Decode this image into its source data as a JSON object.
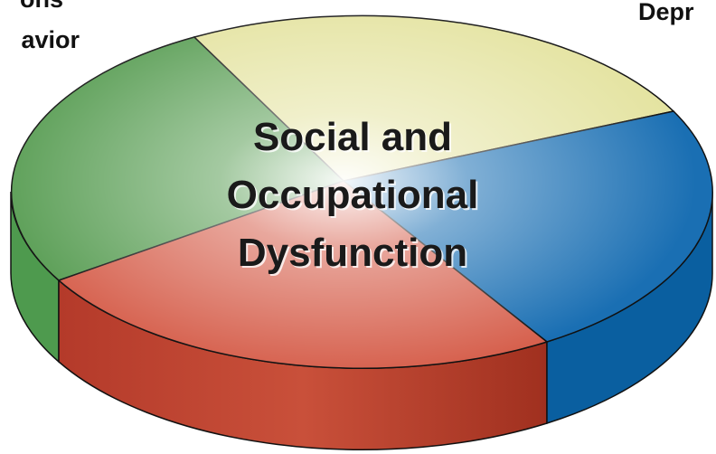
{
  "labels": {
    "top_left": [
      "ons",
      "avior"
    ],
    "top_right": "Depr"
  },
  "center_text": [
    "Social and",
    "Occupational",
    "Dysfunction"
  ]
}
